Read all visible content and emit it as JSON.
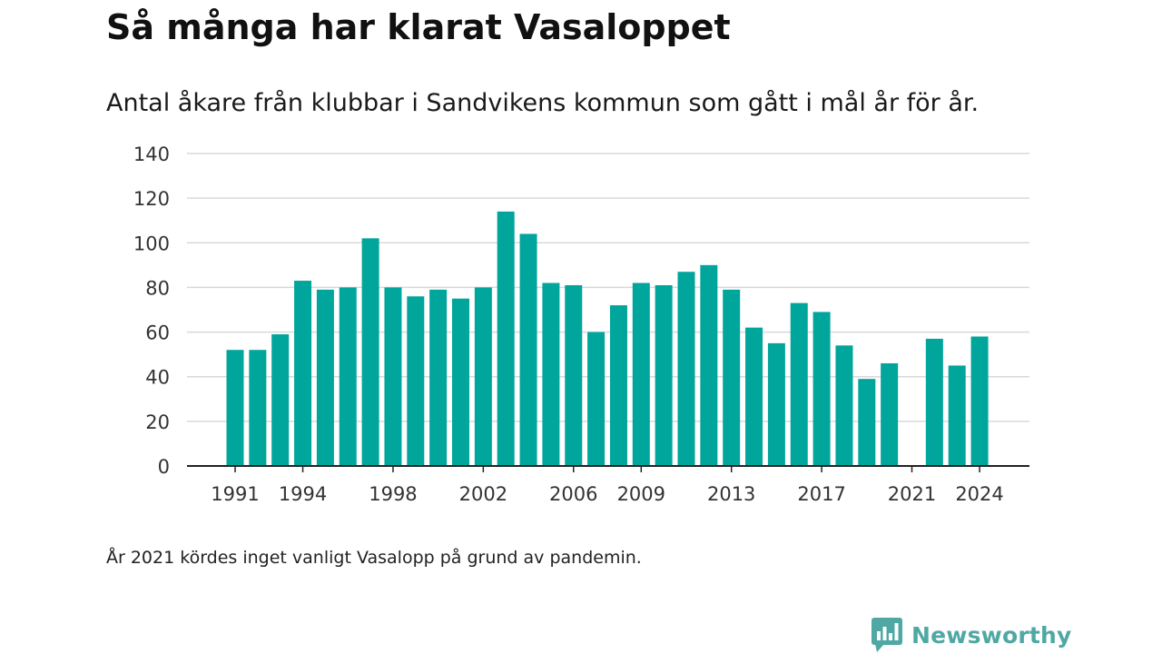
{
  "title": "Så många har klarat Vasaloppet",
  "subtitle": "Antal åkare från klubbar i Sandvikens kommun som gått i mål år för år.",
  "footnote": "År 2021 kördes inget vanligt Vasalopp på grund av pandemin.",
  "brand": {
    "name": "Newsworthy",
    "icon": "bar-chart-speech-bubble-icon",
    "color": "#4fa8a3"
  },
  "colors": {
    "bar": "#00a59c",
    "grid": "#d9d9d9",
    "axis": "#222222"
  },
  "chart_data": {
    "type": "bar",
    "categories": [
      1991,
      1992,
      1993,
      1994,
      1995,
      1996,
      1997,
      1998,
      1999,
      2000,
      2001,
      2002,
      2003,
      2004,
      2005,
      2006,
      2007,
      2008,
      2009,
      2010,
      2011,
      2012,
      2013,
      2014,
      2015,
      2016,
      2017,
      2018,
      2019,
      2020,
      2021,
      2022,
      2023,
      2024
    ],
    "values": [
      52,
      52,
      59,
      83,
      79,
      80,
      102,
      80,
      76,
      79,
      75,
      80,
      114,
      104,
      82,
      81,
      60,
      72,
      82,
      81,
      87,
      90,
      79,
      62,
      55,
      73,
      69,
      54,
      39,
      46,
      null,
      57,
      45,
      58
    ],
    "x_tick_labels": [
      "1991",
      "1994",
      "1998",
      "2002",
      "2006",
      "2009",
      "2013",
      "2017",
      "2021",
      "2024"
    ],
    "y_ticks": [
      0,
      20,
      40,
      60,
      80,
      100,
      120,
      140
    ],
    "ylim": [
      0,
      140
    ],
    "grid": true,
    "legend": "none"
  }
}
